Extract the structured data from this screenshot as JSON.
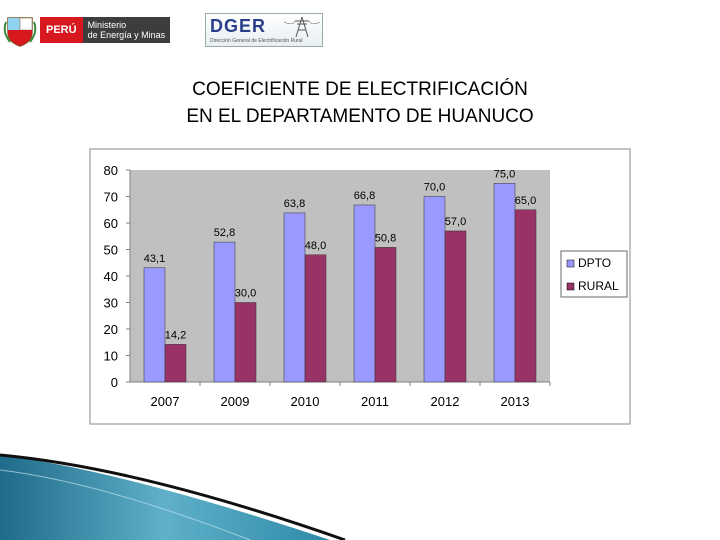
{
  "header": {
    "peru_label": "PERÚ",
    "ministry_line1": "Ministerio",
    "ministry_line2": "de Energía y Minas",
    "dger_label": "DGER",
    "dger_sub": "Dirección General de Electrificación Rural"
  },
  "title_line1": "COEFICIENTE DE ELECTRIFICACIÓN",
  "title_line2": "EN EL DEPARTAMENTO DE HUANUCO",
  "chart_data": {
    "type": "bar",
    "categories": [
      "2007",
      "2009",
      "2010",
      "2011",
      "2012",
      "2013"
    ],
    "series": [
      {
        "name": "DPTO",
        "values": [
          43.1,
          52.8,
          63.8,
          66.8,
          70.0,
          75.0
        ],
        "labels": [
          "43,1",
          "52,8",
          "63,8",
          "66,8",
          "70,0",
          "75,0"
        ],
        "color": "#9999ff"
      },
      {
        "name": "RURAL",
        "values": [
          14.2,
          30.0,
          48.0,
          50.8,
          57.0,
          65.0
        ],
        "labels": [
          "14,2",
          "30,0",
          "48,0",
          "50,8",
          "57,0",
          "65,0"
        ],
        "color": "#993366"
      }
    ],
    "ylim": [
      0,
      80
    ],
    "yticks": [
      "0",
      "10",
      "20",
      "30",
      "40",
      "50",
      "60",
      "70",
      "80"
    ],
    "grid": false,
    "legend": "right",
    "title": "",
    "xlabel": "",
    "ylabel": ""
  }
}
